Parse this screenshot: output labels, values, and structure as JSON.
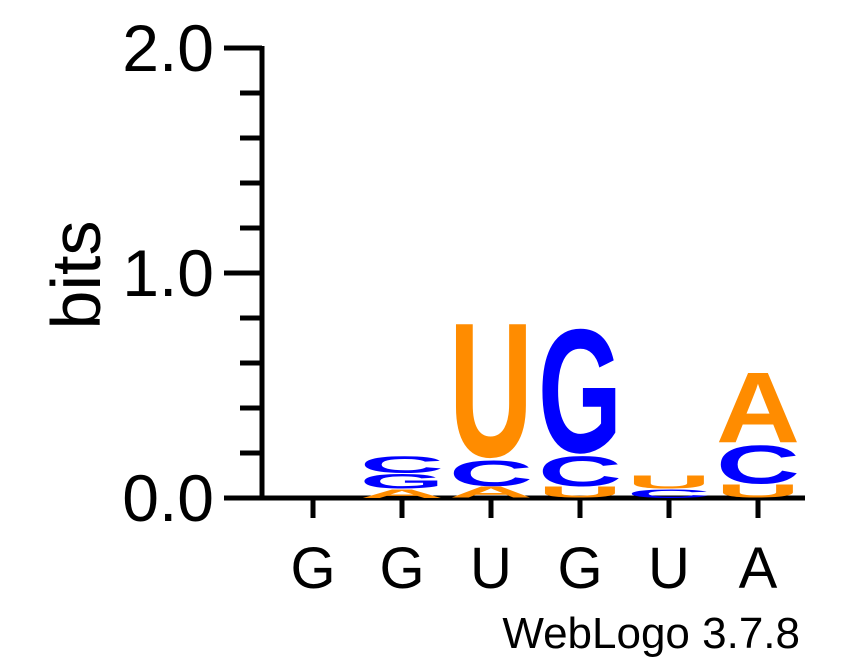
{
  "chart_data": {
    "type": "sequence-logo",
    "ylabel": "bits",
    "ylim": [
      0,
      2
    ],
    "yticks": [
      "0.0",
      "1.0",
      "2.0"
    ],
    "x_tick_labels": [
      "G",
      "G",
      "U",
      "G",
      "U",
      "A"
    ],
    "footer": "WebLogo 3.7.8",
    "colors": {
      "A": "#ff8c00",
      "U": "#ff8c00",
      "G": "#0000ff",
      "C": "#0000ff"
    },
    "columns": [
      {
        "stack": []
      },
      {
        "stack": [
          {
            "letter": "A",
            "bits": 0.04
          },
          {
            "letter": "G",
            "bits": 0.07
          },
          {
            "letter": "C",
            "bits": 0.08
          }
        ]
      },
      {
        "stack": [
          {
            "letter": "A",
            "bits": 0.05
          },
          {
            "letter": "C",
            "bits": 0.12
          },
          {
            "letter": "U",
            "bits": 0.63
          }
        ]
      },
      {
        "stack": [
          {
            "letter": "U",
            "bits": 0.05
          },
          {
            "letter": "C",
            "bits": 0.14
          },
          {
            "letter": "G",
            "bits": 0.58
          }
        ]
      },
      {
        "stack": [
          {
            "letter": "C",
            "bits": 0.04
          },
          {
            "letter": "U",
            "bits": 0.06
          }
        ]
      },
      {
        "stack": [
          {
            "letter": "U",
            "bits": 0.06
          },
          {
            "letter": "C",
            "bits": 0.18
          },
          {
            "letter": "A",
            "bits": 0.33
          }
        ]
      }
    ]
  }
}
